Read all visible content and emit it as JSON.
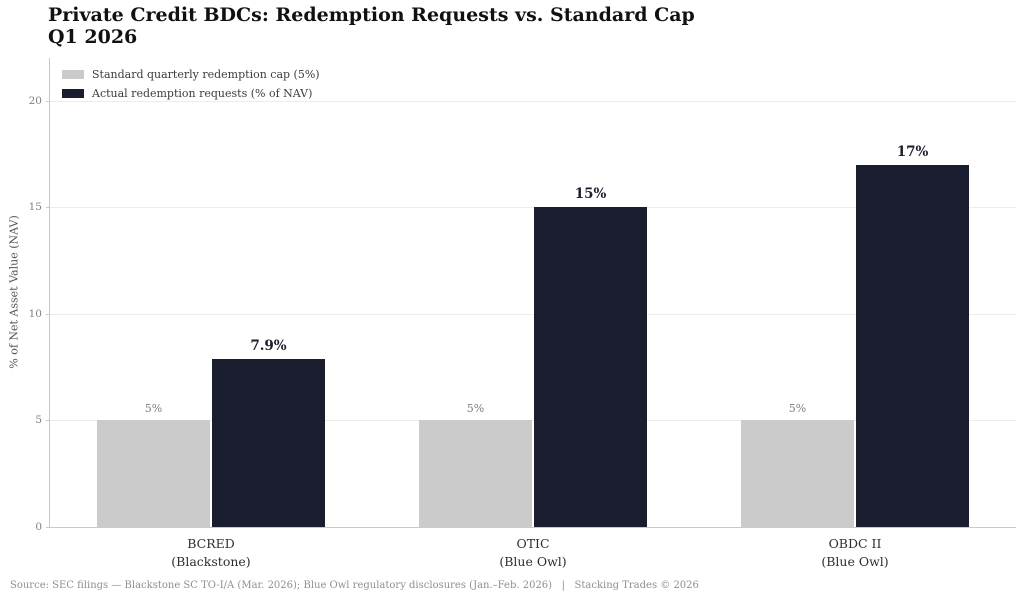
{
  "header": {
    "title_line1": "Private Credit BDCs: Redemption Requests vs. Standard Cap",
    "title_line2": "Q1 2026"
  },
  "footer": {
    "source": "Source: SEC filings — Blackstone SC TO-I/A (Mar. 2026); Blue Owl regulatory disclosures (Jan.–Feb. 2026)   |   Stacking Trades © 2026"
  },
  "chart_data": {
    "type": "bar",
    "title": "Private Credit BDCs: Redemption Requests vs. Standard Cap Q1 2026",
    "categories": [
      "BCRED\n(Blackstone)",
      "OTIC\n(Blue Owl)",
      "OBDC II\n(Blue Owl)"
    ],
    "series": [
      {
        "name": "Standard quarterly redemption cap (5%)",
        "values": [
          5,
          5,
          5
        ],
        "labels": [
          "5%",
          "5%",
          "5%"
        ],
        "color": "#cbcbcb",
        "label_color": "#7f7f7f"
      },
      {
        "name": "Actual redemption requests (% of NAV)",
        "values": [
          7.9,
          15,
          17
        ],
        "labels": [
          "7.9%",
          "15%",
          "17%"
        ],
        "color": "#1a1d2e",
        "label_color": "#1a1d2e"
      }
    ],
    "xlabel": "",
    "ylabel": "% of Net Asset Value (NAV)",
    "yticks": [
      0,
      5,
      10,
      15,
      20
    ],
    "ylim": [
      0,
      22
    ],
    "grid": true,
    "legend_position": "upper-left",
    "background_color": "#ffffff",
    "grid_color": "#ececec",
    "spine_color": "#c9c9c9"
  }
}
